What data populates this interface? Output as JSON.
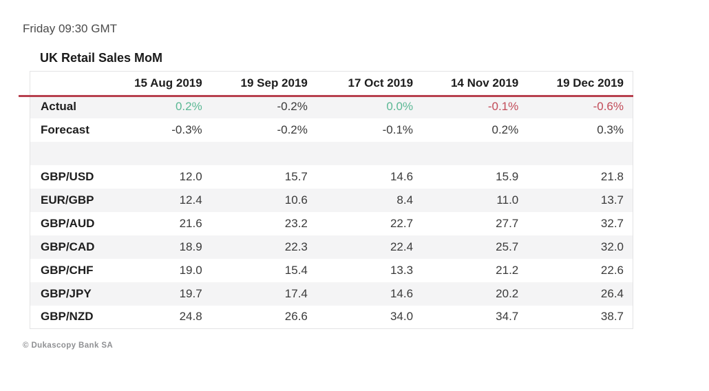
{
  "meta": {
    "timestamp": "Friday 09:30 GMT",
    "copyright": "© Dukascopy Bank SA"
  },
  "colors": {
    "positive": "#5ab894",
    "negative": "#c24b58",
    "header_underline": "#b7404e",
    "row_stripe": "#f4f4f5"
  },
  "chart_data": {
    "type": "table",
    "title": "UK Retail Sales MoM",
    "date_columns": [
      "15 Aug 2019",
      "19 Sep 2019",
      "17 Oct 2019",
      "14 Nov 2019",
      "19 Dec 2019"
    ],
    "rows": [
      {
        "label": "Actual",
        "cells": [
          {
            "text": "0.2%",
            "tone": "positive"
          },
          {
            "text": "-0.2%"
          },
          {
            "text": "0.0%",
            "tone": "positive"
          },
          {
            "text": "-0.1%",
            "tone": "negative"
          },
          {
            "text": "-0.6%",
            "tone": "negative"
          }
        ]
      },
      {
        "label": "Forecast",
        "cells": [
          {
            "text": "-0.3%"
          },
          {
            "text": "-0.2%"
          },
          {
            "text": "-0.1%"
          },
          {
            "text": "0.2%"
          },
          {
            "text": "0.3%"
          }
        ]
      },
      {
        "label": "",
        "spacer": true,
        "cells": [
          {
            "text": ""
          },
          {
            "text": ""
          },
          {
            "text": ""
          },
          {
            "text": ""
          },
          {
            "text": ""
          }
        ]
      },
      {
        "label": "GBP/USD",
        "cells": [
          {
            "text": "12.0"
          },
          {
            "text": "15.7"
          },
          {
            "text": "14.6"
          },
          {
            "text": "15.9"
          },
          {
            "text": "21.8"
          }
        ]
      },
      {
        "label": "EUR/GBP",
        "cells": [
          {
            "text": "12.4"
          },
          {
            "text": "10.6"
          },
          {
            "text": "8.4"
          },
          {
            "text": "11.0"
          },
          {
            "text": "13.7"
          }
        ]
      },
      {
        "label": "GBP/AUD",
        "cells": [
          {
            "text": "21.6"
          },
          {
            "text": "23.2"
          },
          {
            "text": "22.7"
          },
          {
            "text": "27.7"
          },
          {
            "text": "32.7"
          }
        ]
      },
      {
        "label": "GBP/CAD",
        "cells": [
          {
            "text": "18.9"
          },
          {
            "text": "22.3"
          },
          {
            "text": "22.4"
          },
          {
            "text": "25.7"
          },
          {
            "text": "32.0"
          }
        ]
      },
      {
        "label": "GBP/CHF",
        "cells": [
          {
            "text": "19.0"
          },
          {
            "text": "15.4"
          },
          {
            "text": "13.3"
          },
          {
            "text": "21.2"
          },
          {
            "text": "22.6"
          }
        ]
      },
      {
        "label": "GBP/JPY",
        "cells": [
          {
            "text": "19.7"
          },
          {
            "text": "17.4"
          },
          {
            "text": "14.6"
          },
          {
            "text": "20.2"
          },
          {
            "text": "26.4"
          }
        ]
      },
      {
        "label": "GBP/NZD",
        "cells": [
          {
            "text": "24.8"
          },
          {
            "text": "26.6"
          },
          {
            "text": "34.0"
          },
          {
            "text": "34.7"
          },
          {
            "text": "38.7"
          }
        ]
      }
    ]
  }
}
